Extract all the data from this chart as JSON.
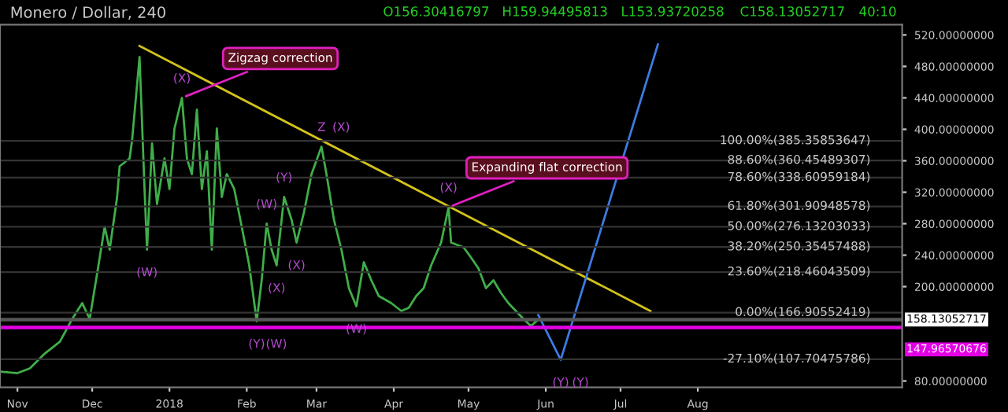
{
  "chart_data": {
    "type": "line",
    "title": "Monero / Dollar, 240",
    "annotations": [
      "O156.30416797",
      "H159.94495813",
      "L153.93720258",
      "C158.13052717",
      "40:10",
      {
        "text": "Zigzag correction",
        "x": "2018-01-06",
        "y": 440
      },
      {
        "text": "Expanding flat correction",
        "x": "2018-04-23",
        "y": 301
      },
      {
        "text": "(W)",
        "x": "2017-12-23",
        "y": 247
      },
      {
        "text": "(X)",
        "x": "2018-01-06",
        "y": 440
      },
      {
        "text": "(Y)",
        "x": "2018-02-05",
        "y": 156
      },
      {
        "text": "(W)",
        "x": "2018-02-05",
        "y": 156
      },
      {
        "text": "(W)",
        "x": "2018-02-09",
        "y": 280
      },
      {
        "text": "(X)",
        "x": "2018-02-13",
        "y": 227
      },
      {
        "text": "(Y)",
        "x": "2018-02-16",
        "y": 314
      },
      {
        "text": "(X)",
        "x": "2018-02-21",
        "y": 256
      },
      {
        "text": "Z",
        "x": "2018-03-03",
        "y": 378
      },
      {
        "text": "(X)",
        "x": "2018-03-03",
        "y": 378
      },
      {
        "text": "(W)",
        "x": "2018-03-17",
        "y": 175
      },
      {
        "text": "(X)",
        "x": "2018-04-23",
        "y": 301
      },
      {
        "text": "(Y)",
        "x": "2018-06-07",
        "y": 107
      },
      {
        "text": "(Y)",
        "x": "2018-06-07",
        "y": 107
      }
    ],
    "xlim": [
      "2017-10-25",
      "2018-10-22"
    ],
    "xticks": [
      {
        "value": "2017-11-01",
        "label": "Nov"
      },
      {
        "value": "2017-12-01",
        "label": "Dec"
      },
      {
        "value": "2018-01-01",
        "label": "2018"
      },
      {
        "value": "2018-02-01",
        "label": "Feb"
      },
      {
        "value": "2018-03-01",
        "label": "Mar"
      },
      {
        "value": "2018-04-01",
        "label": "Apr"
      },
      {
        "value": "2018-05-01",
        "label": "May"
      },
      {
        "value": "2018-06-01",
        "label": "Jun"
      },
      {
        "value": "2018-07-01",
        "label": "Jul"
      },
      {
        "value": "2018-08-01",
        "label": "Aug"
      }
    ],
    "ylim": [
      72,
      533
    ],
    "yticks": [
      {
        "value": 80,
        "label": "80.00000000"
      },
      {
        "value": 200,
        "label": "200.00000000"
      },
      {
        "value": 240,
        "label": "240.00000000"
      },
      {
        "value": 280,
        "label": "280.00000000"
      },
      {
        "value": 320,
        "label": "320.00000000"
      },
      {
        "value": 360,
        "label": "360.00000000"
      },
      {
        "value": 400,
        "label": "400.00000000"
      },
      {
        "value": 440,
        "label": "440.00000000"
      },
      {
        "value": 480,
        "label": "480.00000000"
      },
      {
        "value": 520,
        "label": "520.00000000"
      }
    ],
    "series": [
      {
        "color": "#3fae49",
        "x": [
          "2017-10-25",
          "2017-11-01",
          "2017-11-06",
          "2017-11-12",
          "2017-11-18",
          "2017-11-23",
          "2017-11-27",
          "2017-11-30",
          "2017-12-03",
          "2017-12-06",
          "2017-12-08",
          "2017-12-11",
          "2017-12-12",
          "2017-12-16",
          "2017-12-17",
          "2017-12-20",
          "2017-12-22",
          "2017-12-23",
          "2017-12-25",
          "2017-12-27",
          "2017-12-30",
          "2018-01-01",
          "2018-01-03",
          "2018-01-06",
          "2018-01-08",
          "2018-01-10",
          "2018-01-12",
          "2018-01-14",
          "2018-01-16",
          "2018-01-18",
          "2018-01-20",
          "2018-01-22",
          "2018-01-24",
          "2018-01-27",
          "2018-01-30",
          "2018-02-02",
          "2018-02-05",
          "2018-02-07",
          "2018-02-09",
          "2018-02-11",
          "2018-02-13",
          "2018-02-16",
          "2018-02-19",
          "2018-02-21",
          "2018-02-24",
          "2018-02-27",
          "2018-03-03",
          "2018-03-05",
          "2018-03-08",
          "2018-03-11",
          "2018-03-14",
          "2018-03-17",
          "2018-03-20",
          "2018-03-23",
          "2018-03-26",
          "2018-03-31",
          "2018-04-04",
          "2018-04-07",
          "2018-04-10",
          "2018-04-13",
          "2018-04-16",
          "2018-04-20",
          "2018-04-23",
          "2018-04-24",
          "2018-04-29",
          "2018-05-02",
          "2018-05-05",
          "2018-05-08",
          "2018-05-11",
          "2018-05-14",
          "2018-05-17",
          "2018-05-20",
          "2018-05-23",
          "2018-05-26",
          "2018-05-29"
        ],
        "values": [
          92,
          90,
          96,
          115,
          130,
          159,
          179,
          159,
          217,
          276,
          247,
          314,
          353,
          363,
          386,
          492,
          324,
          247,
          382,
          305,
          363,
          324,
          401,
          440,
          363,
          343,
          425,
          324,
          372,
          247,
          401,
          314,
          343,
          324,
          276,
          227,
          156,
          208,
          280,
          247,
          227,
          314,
          285,
          256,
          295,
          343,
          378,
          343,
          285,
          247,
          198,
          175,
          231,
          208,
          188,
          179,
          169,
          173,
          188,
          198,
          227,
          256,
          301,
          256,
          250,
          237,
          223,
          198,
          208,
          192,
          179,
          169,
          159,
          150,
          158
        ]
      },
      {
        "type": "line",
        "color": "#d4c21a",
        "x": [
          "2017-12-20",
          "2018-07-13"
        ],
        "values": [
          506,
          169
        ]
      },
      {
        "type": "line",
        "color": "#3d7be0",
        "x": [
          "2018-05-29",
          "2018-06-07",
          "2018-07-16"
        ],
        "values": [
          164,
          107,
          508
        ]
      }
    ],
    "ref_lines": [
      {
        "axis": "y",
        "value": 385.35853647,
        "label": "100.00%(385.35853647)",
        "color": "#333333"
      },
      {
        "axis": "y",
        "value": 360.45489307,
        "label": "88.60%(360.45489307)",
        "color": "#333333"
      },
      {
        "axis": "y",
        "value": 338.60959184,
        "label": "78.60%(338.60959184)",
        "color": "#333333"
      },
      {
        "axis": "y",
        "value": 301.90948578,
        "label": "61.80%(301.90948578)",
        "color": "#333333"
      },
      {
        "axis": "y",
        "value": 276.13203033,
        "label": "50.00%(276.13203033)",
        "color": "#333333"
      },
      {
        "axis": "y",
        "value": 250.35457488,
        "label": "38.20%(250.35457488)",
        "color": "#333333"
      },
      {
        "axis": "y",
        "value": 218.46043509,
        "label": "23.60%(218.46043509)",
        "color": "#333333"
      },
      {
        "axis": "y",
        "value": 166.90552419,
        "label": "0.00%(166.90552419)",
        "color": "#333333"
      },
      {
        "axis": "y",
        "value": 107.70475786,
        "label": "-27.10%(107.70475786)",
        "color": "#333333"
      },
      {
        "axis": "y",
        "value": 158.13052717,
        "label": "158.13052717",
        "color": "#555555",
        "line_style": "solid"
      },
      {
        "axis": "y",
        "value": 147.96570676,
        "label": "147.96570676",
        "color": "#e400e4",
        "line_style": "solid"
      }
    ],
    "grid": false,
    "legend": false
  }
}
